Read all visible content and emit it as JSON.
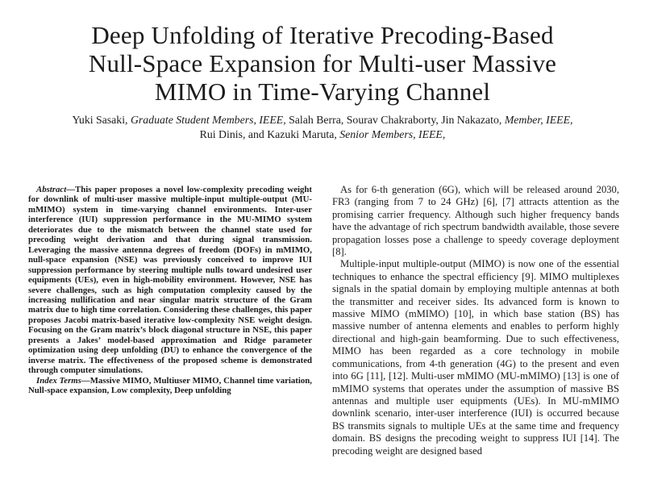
{
  "title": {
    "lines": [
      "Deep Unfolding of Iterative Precoding-Based",
      "Null-Space Expansion for Multi-user Massive",
      "MIMO in Time-Varying Channel"
    ]
  },
  "authors": {
    "l1a": "Yuki Sasaki, ",
    "l1b": "Graduate Student Members, IEEE,",
    "l1c": " Salah Berra, Sourav Chakraborty, Jin Nakazato, ",
    "l1d": "Member, IEEE,",
    "l2a": "Rui Dinis, and Kazuki Maruta, ",
    "l2b": "Senior Members, IEEE,"
  },
  "abstract": {
    "lead": "Abstract",
    "text": "—This paper proposes a novel low-complexity precoding weight for downlink of multi-user massive multiple-input multiple-output (MU-mMIMO) system in time-varying channel environments. Inter-user interference (IUI) suppression performance in the MU-MIMO system deteriorates due to the mismatch between the channel state used for precoding weight derivation and that during signal transmission. Leveraging the massive antenna degrees of freedom (DOFs) in mMIMO, null-space expansion (NSE) was previously conceived to improve IUI suppression performance by steering multiple nulls toward undesired user equipments (UEs), even in high-mobility environment. However, NSE has severe challenges, such as high computation complexity caused by the increasing nullification and near singular matrix structure of the Gram matrix due to high time correlation. Considering these challenges, this paper proposes Jacobi matrix-based iterative low-complexity NSE weight design. Focusing on the Gram matrix’s block diagonal structure in NSE, this paper presents a Jakes’ model-based approximation and Ridge parameter optimization using deep unfolding (DU) to enhance the convergence of the inverse matrix. The effectiveness of the proposed scheme is demonstrated through computer simulations."
  },
  "index_terms": {
    "lead": "Index Terms",
    "text": "—Massive MIMO, Multiuser MIMO, Channel time variation, Null-space expansion, Low complexity, Deep unfolding"
  },
  "body": {
    "paragraphs": [
      "As for 6-th generation (6G), which will be released around 2030, FR3 (ranging from 7 to 24 GHz) [6], [7] attracts attention as the promising carrier frequency. Although such higher frequency bands have the advantage of rich spectrum bandwidth available, those severe propagation losses pose a challenge to speedy coverage deployment [8].",
      "Multiple-input multiple-output (MIMO) is now one of the essential techniques to enhance the spectral efficiency [9]. MIMO multiplexes signals in the spatial domain by employing multiple antennas at both the transmitter and receiver sides. Its advanced form is known to massive MIMO (mMIMO) [10], in which base station (BS) has massive number of antenna elements and enables to perform highly directional and high-gain beamforming. Due to such effectiveness, MIMO has been regarded as a core technology in mobile communications, from 4-th generation (4G) to the present and even into 6G [11], [12]. Multi-user mMIMO (MU-mMIMO) [13] is one of mMIMO systems that operates under the assumption of massive BS antennas and multiple user equipments (UEs). In MU-mMIMO downlink scenario, inter-user interference (IUI) is occurred because BS transmits signals to multiple UEs at the same time and frequency domain. BS designs the precoding weight to suppress IUI [14]. The precoding weight are designed based"
    ]
  }
}
